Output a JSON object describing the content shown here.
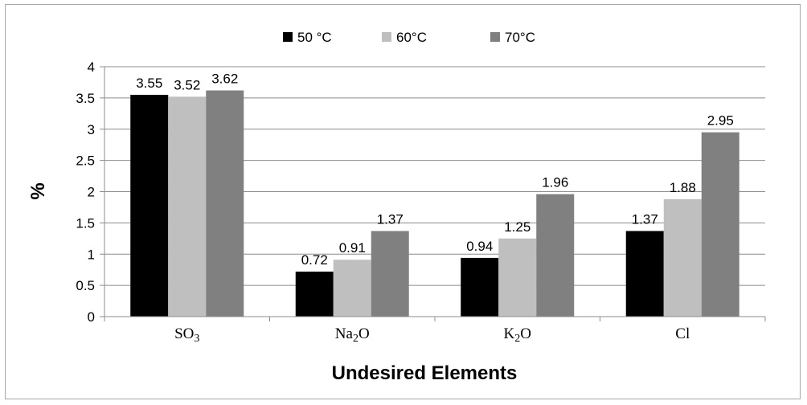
{
  "chart_data": {
    "type": "bar",
    "categories": [
      "SO3",
      "Na2O",
      "K2O",
      "Cl"
    ],
    "category_labels": [
      {
        "main": "SO",
        "sub": "3",
        "tail": ""
      },
      {
        "main": "Na",
        "sub": "2",
        "tail": "O"
      },
      {
        "main": "K",
        "sub": "2",
        "tail": "O"
      },
      {
        "main": "Cl",
        "sub": "",
        "tail": ""
      }
    ],
    "series": [
      {
        "name": "50 °C",
        "color": "#000000",
        "values": [
          3.55,
          0.72,
          0.94,
          1.37
        ],
        "labels": [
          "3.55",
          "0.72",
          "0.94",
          "1.37"
        ]
      },
      {
        "name": "60°C",
        "color": "#bfbfbf",
        "values": [
          3.52,
          0.91,
          1.25,
          1.88
        ],
        "labels": [
          "3.52",
          "0.91",
          "1.25",
          "1.88"
        ]
      },
      {
        "name": "70°C",
        "color": "#808080",
        "values": [
          3.62,
          1.37,
          1.96,
          2.95
        ],
        "labels": [
          "3.62",
          "1.37",
          "1.96",
          "2.95"
        ]
      }
    ],
    "xlabel": "Undesired Elements",
    "ylabel": "%",
    "ylim": [
      0,
      4
    ],
    "yticks": [
      0,
      0.5,
      1,
      1.5,
      2,
      2.5,
      3,
      3.5,
      4
    ],
    "ytick_labels": [
      "0",
      "0.5",
      "1",
      "1.5",
      "2",
      "2.5",
      "3",
      "3.5",
      "4"
    ],
    "grid": true,
    "legend_position": "top"
  }
}
